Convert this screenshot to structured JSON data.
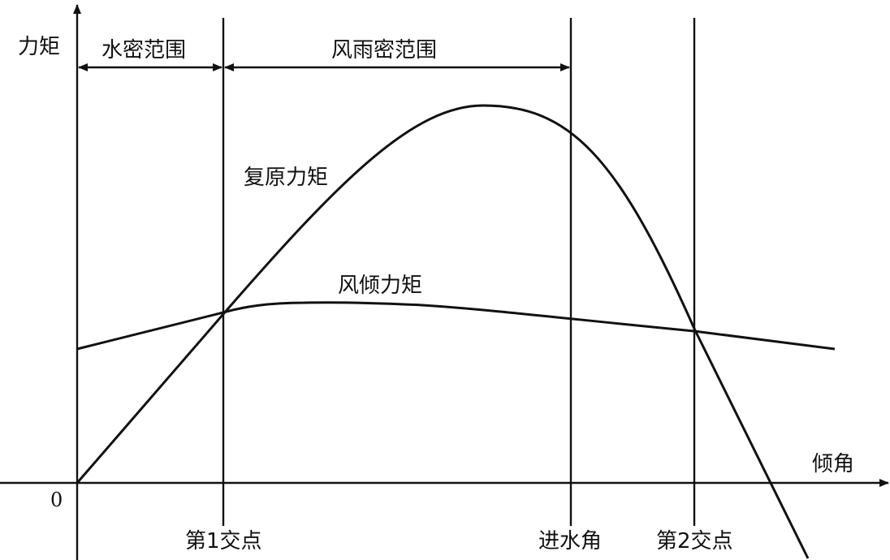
{
  "labels": {
    "y_axis": "力矩",
    "x_axis": "倾角",
    "origin": "0",
    "range_watertight": "水密范围",
    "range_weathertight": "风雨密范围",
    "restoring_moment": "复原力矩",
    "wind_heeling_moment": "风倾力矩",
    "first_intersection": "第1交点",
    "flooding_angle": "进水角",
    "second_intersection": "第2交点"
  },
  "colors": {
    "ink": "#111111",
    "background": "#ffffff"
  }
}
